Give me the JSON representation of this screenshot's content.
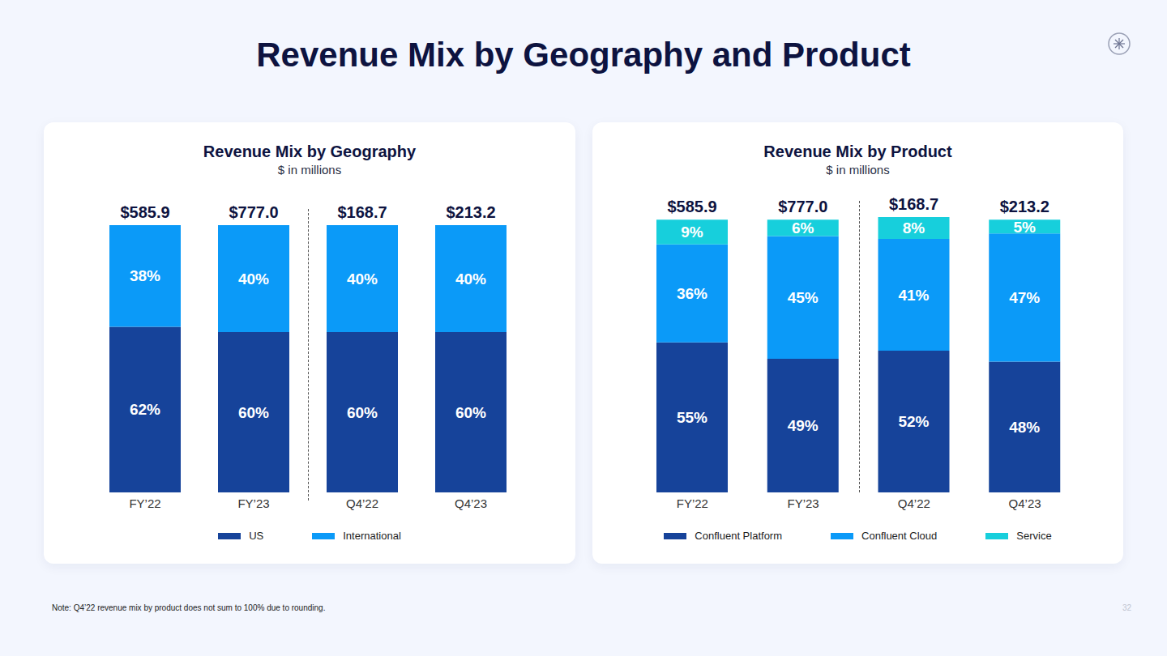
{
  "title": "Revenue Mix by Geography and Product",
  "note": "Note: Q4’22 revenue mix by product does not sum to 100% due to rounding.",
  "page_number": "32",
  "chart_data": [
    {
      "type": "bar",
      "stacked": true,
      "data_labels": true,
      "tick_labels": "x",
      "title": "Revenue Mix by Geography",
      "subtitle": "$ in millions",
      "categories": [
        "FY’22",
        "FY’23",
        "Q4’22",
        "Q4’23"
      ],
      "total_labels": [
        "$585.9",
        "$777.0",
        "$168.7",
        "$213.2"
      ],
      "ylim": [
        0,
        100
      ],
      "series": [
        {
          "name": "US",
          "color": "#16439a",
          "values": [
            62,
            60,
            60,
            60
          ],
          "value_labels": [
            "62%",
            "60%",
            "60%",
            "60%"
          ]
        },
        {
          "name": "International",
          "color": "#0b9af8",
          "values": [
            38,
            40,
            40,
            40
          ],
          "value_labels": [
            "38%",
            "40%",
            "40%",
            "40%"
          ]
        }
      ]
    },
    {
      "type": "bar",
      "stacked": true,
      "data_labels": true,
      "tick_labels": "x",
      "title": "Revenue Mix by Product",
      "subtitle": "$ in millions",
      "categories": [
        "FY’22",
        "FY’23",
        "Q4’22",
        "Q4’23"
      ],
      "total_labels": [
        "$585.9",
        "$777.0",
        "$168.7",
        "$213.2"
      ],
      "ylim": [
        0,
        101
      ],
      "series": [
        {
          "name": "Confluent Platform",
          "color": "#16439a",
          "values": [
            55,
            49,
            52,
            48
          ],
          "value_labels": [
            "55%",
            "49%",
            "52%",
            "48%"
          ]
        },
        {
          "name": "Confluent Cloud",
          "color": "#0b9af8",
          "values": [
            36,
            45,
            41,
            47
          ],
          "value_labels": [
            "36%",
            "45%",
            "41%",
            "47%"
          ]
        },
        {
          "name": "Service",
          "color": "#17cfdc",
          "values": [
            9,
            6,
            8,
            5
          ],
          "value_labels": [
            "9%",
            "6%",
            "8%",
            "5%"
          ]
        }
      ]
    }
  ]
}
